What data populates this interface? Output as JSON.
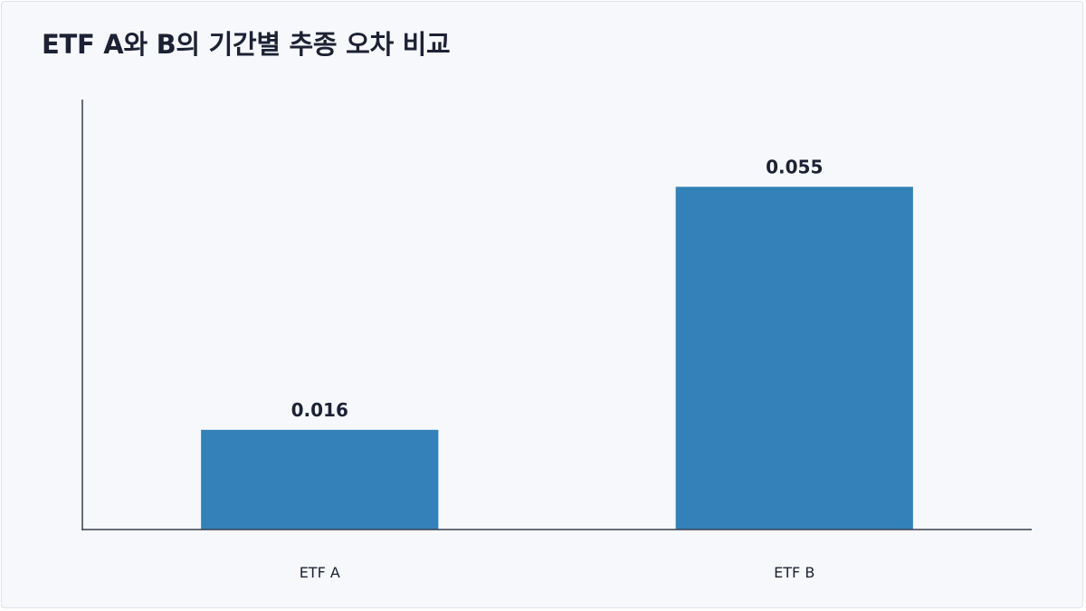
{
  "title": "ETF A와 B의 기간별 추종 오차 비교",
  "colors": {
    "background": "#f6f8fc",
    "bar": "#3381b8",
    "axis": "#3a3f4f",
    "text": "#1c2133"
  },
  "chart_data": {
    "type": "bar",
    "title": "ETF A와 B의 기간별 추종 오차 비교",
    "xlabel": "",
    "ylabel": "",
    "categories": [
      "ETF A",
      "ETF B"
    ],
    "values": [
      0.016,
      0.055
    ],
    "data_labels": [
      "0.016",
      "0.055"
    ],
    "ylim": [
      0,
      0.069
    ],
    "grid": false,
    "legend": "none"
  }
}
